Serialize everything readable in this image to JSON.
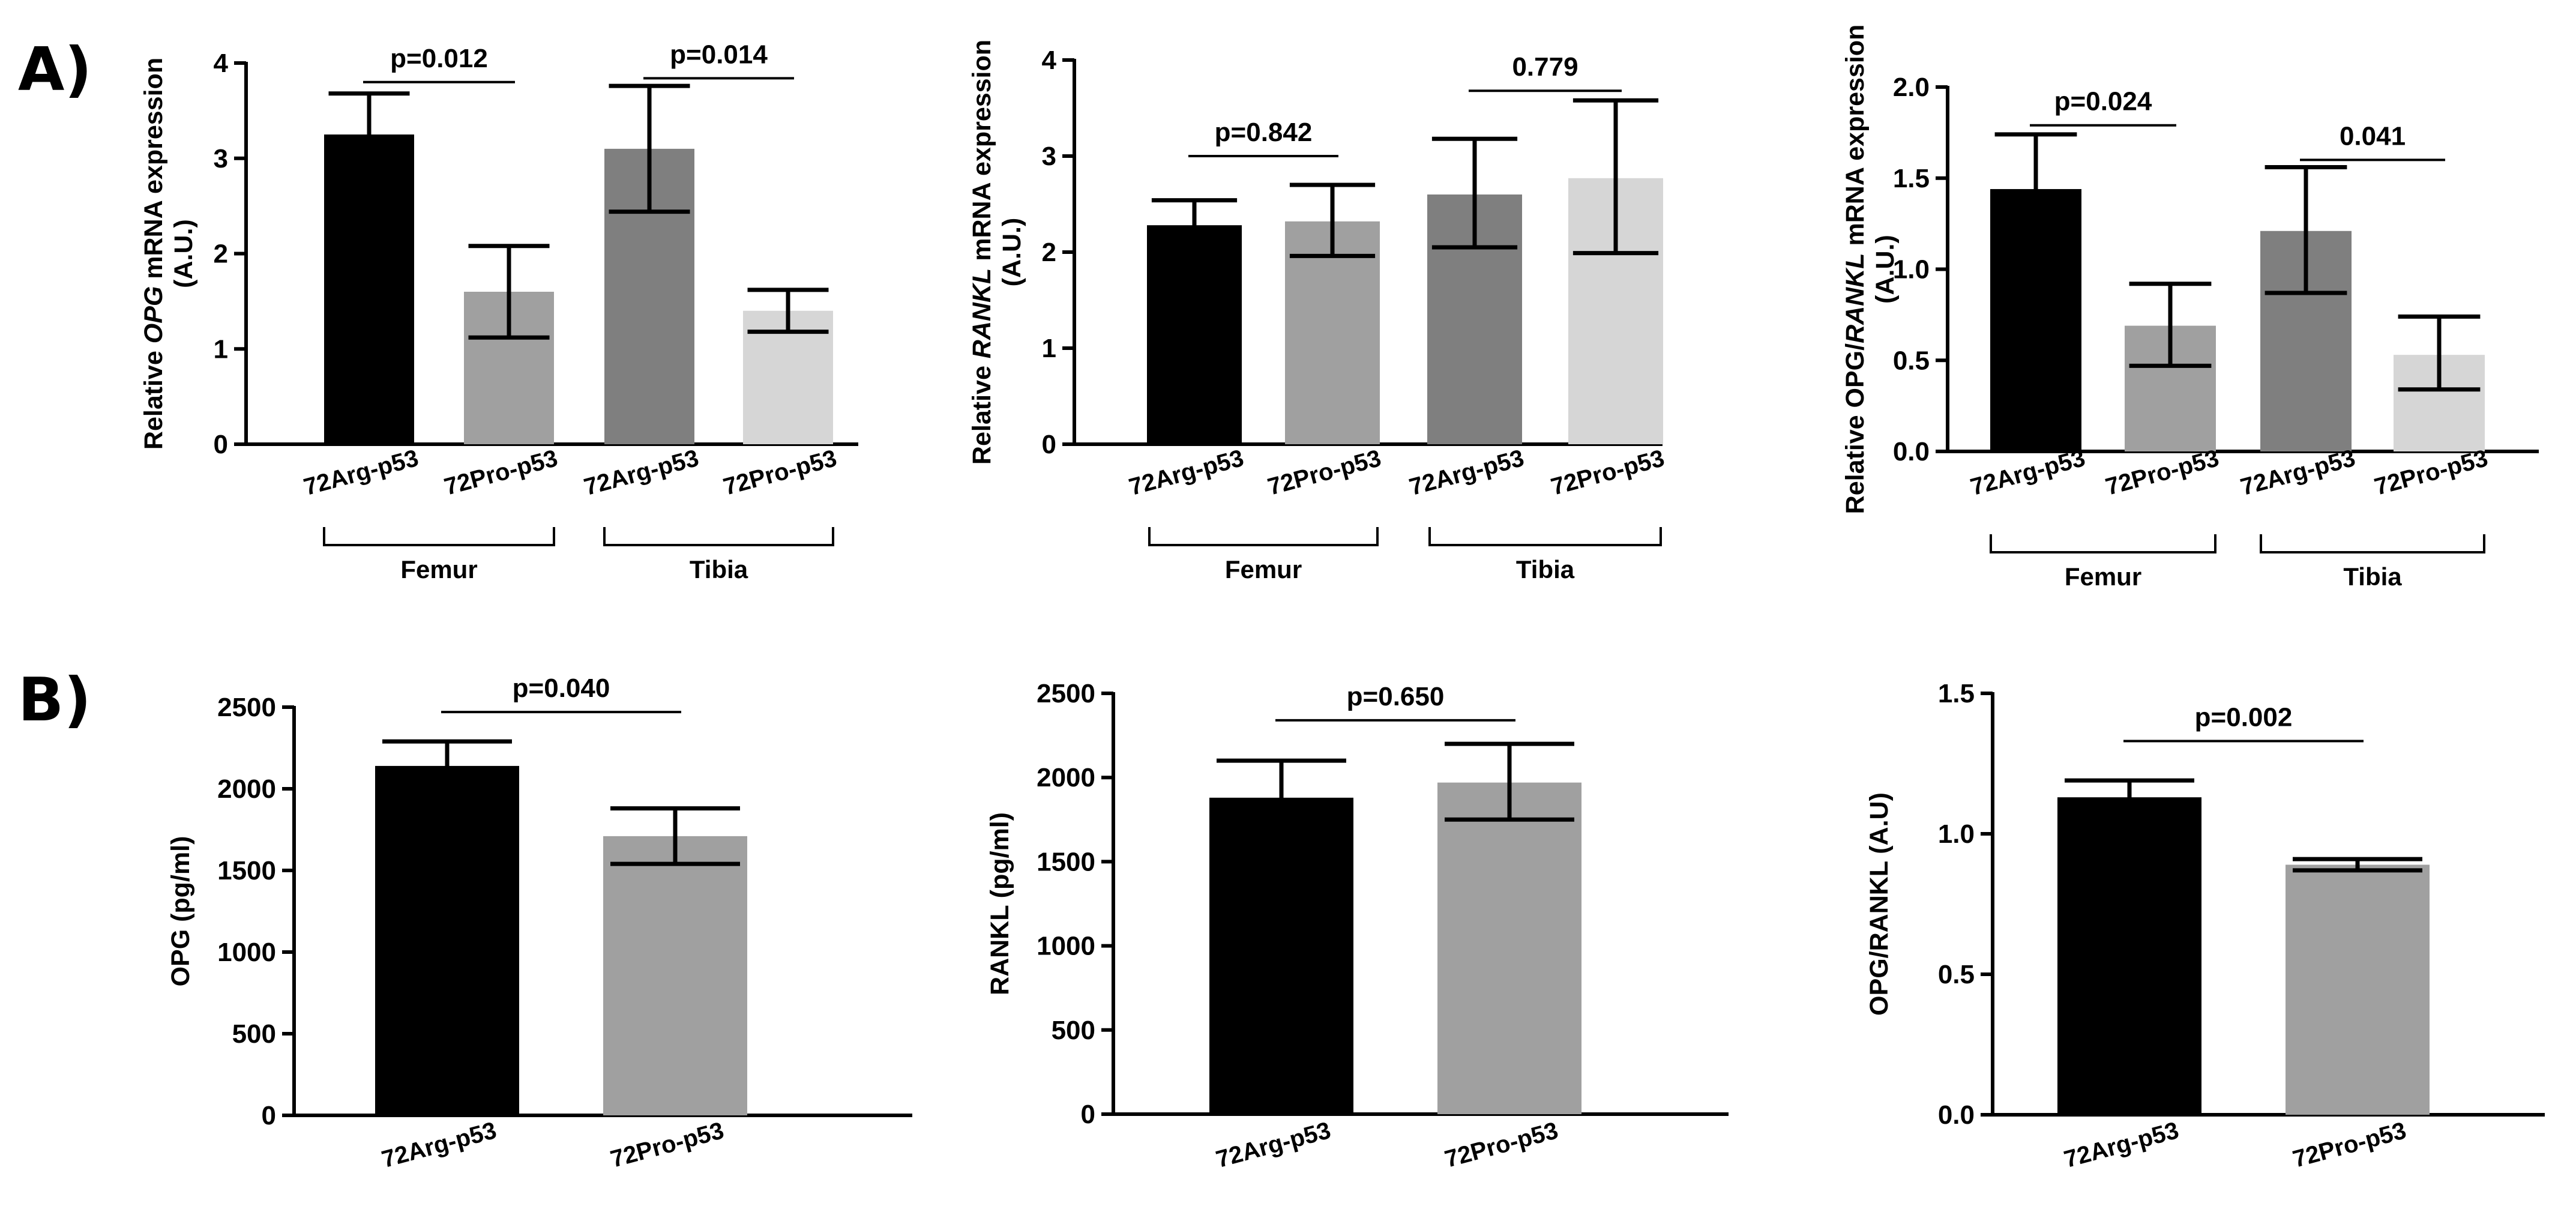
{
  "panel_labels": {
    "a": "A)",
    "b": "B)"
  },
  "colors": {
    "arg": "#000000",
    "pro": "#a0a0a0",
    "arg_tibia": "#7f7f7f",
    "pro_tibia": "#d6d6d6"
  },
  "chart_data": [
    {
      "id": "a1",
      "type": "bar",
      "panel": "A",
      "ylabel_parts": [
        {
          "text": "Relative ",
          "italic": false
        },
        {
          "text": "OPG",
          "italic": true
        },
        {
          "text": " mRNA expression",
          "italic": false
        }
      ],
      "ylabel_line2": "(A.U.)",
      "ylim": [
        0,
        4
      ],
      "yticks": [
        0,
        1,
        2,
        3,
        4
      ],
      "categories": [
        "72Arg-p53",
        "72Pro-p53",
        "72Arg-p53",
        "72Pro-p53"
      ],
      "values": [
        3.25,
        1.6,
        3.1,
        1.4
      ],
      "err_low": [
        2.8,
        1.12,
        2.44,
        1.18
      ],
      "err_high": [
        3.68,
        2.08,
        3.76,
        1.62
      ],
      "colors": [
        "#000000",
        "#a0a0a0",
        "#7f7f7f",
        "#d6d6d6"
      ],
      "groups": [
        {
          "label": "Femur",
          "from": 0,
          "to": 1
        },
        {
          "label": "Tibia",
          "from": 2,
          "to": 3
        }
      ],
      "comparisons": [
        {
          "from": 0,
          "to": 1,
          "label": "p=0.012",
          "y": 3.8
        },
        {
          "from": 2,
          "to": 3,
          "label": "p=0.014",
          "y": 3.84
        }
      ]
    },
    {
      "id": "a2",
      "type": "bar",
      "panel": "A",
      "ylabel_parts": [
        {
          "text": "Relative ",
          "italic": false
        },
        {
          "text": "RANKL",
          "italic": true
        },
        {
          "text": " mRNA expression",
          "italic": false
        }
      ],
      "ylabel_line2": "(A.U.)",
      "ylim": [
        0,
        4
      ],
      "yticks": [
        0,
        1,
        2,
        3,
        4
      ],
      "categories": [
        "72Arg-p53",
        "72Pro-p53",
        "72Arg-p53",
        "72Pro-p53"
      ],
      "values": [
        2.28,
        2.32,
        2.6,
        2.77
      ],
      "err_low": [
        2.02,
        1.96,
        2.05,
        1.99
      ],
      "err_high": [
        2.54,
        2.7,
        3.18,
        3.58
      ],
      "colors": [
        "#000000",
        "#a0a0a0",
        "#7f7f7f",
        "#d6d6d6"
      ],
      "groups": [
        {
          "label": "Femur",
          "from": 0,
          "to": 1
        },
        {
          "label": "Tibia",
          "from": 2,
          "to": 3
        }
      ],
      "comparisons": [
        {
          "from": 0,
          "to": 1,
          "label": "p=0.842",
          "y": 3.0
        },
        {
          "from": 2,
          "to": 3,
          "label": "0.779",
          "y": 3.68
        }
      ]
    },
    {
      "id": "a3",
      "type": "bar",
      "panel": "A",
      "ylabel_parts": [
        {
          "text": "Relative OPG/",
          "italic": false
        },
        {
          "text": "RANKL",
          "italic": true
        },
        {
          "text": " mRNA expression",
          "italic": false
        }
      ],
      "ylabel_line2": "(A.U.)",
      "ylim": [
        0,
        2.0
      ],
      "yticks": [
        0.0,
        0.5,
        1.0,
        1.5,
        2.0
      ],
      "ytick_labels": [
        "0.0",
        "0.5",
        "1.0",
        "1.5",
        "2.0"
      ],
      "categories": [
        "72Arg-p53",
        "72Pro-p53",
        "72Arg-p53",
        "72Pro-p53"
      ],
      "values": [
        1.44,
        0.69,
        1.21,
        0.53
      ],
      "err_low": [
        1.2,
        0.47,
        0.87,
        0.34
      ],
      "err_high": [
        1.74,
        0.92,
        1.56,
        0.74
      ],
      "colors": [
        "#000000",
        "#a0a0a0",
        "#7f7f7f",
        "#d6d6d6"
      ],
      "groups": [
        {
          "label": "Femur",
          "from": 0,
          "to": 1
        },
        {
          "label": "Tibia",
          "from": 2,
          "to": 3
        }
      ],
      "comparisons": [
        {
          "from": 0,
          "to": 1,
          "label": "p=0.024",
          "y": 1.79
        },
        {
          "from": 2,
          "to": 3,
          "label": "0.041",
          "y": 1.6
        }
      ]
    },
    {
      "id": "b1",
      "type": "bar",
      "panel": "B",
      "ylabel_parts": [
        {
          "text": "OPG (pg/ml)",
          "italic": false
        }
      ],
      "ylim": [
        0,
        2500
      ],
      "yticks": [
        0,
        500,
        1000,
        1500,
        2000,
        2500
      ],
      "categories": [
        "72Arg-p53",
        "72Pro-p53"
      ],
      "values": [
        2140,
        1710
      ],
      "err_low": [
        1990,
        1540
      ],
      "err_high": [
        2290,
        1880
      ],
      "colors": [
        "#000000",
        "#a0a0a0"
      ],
      "comparisons": [
        {
          "from": 0,
          "to": 1,
          "label": "p=0.040",
          "y": 2470
        }
      ]
    },
    {
      "id": "b2",
      "type": "bar",
      "panel": "B",
      "ylabel_parts": [
        {
          "text": "RANKL (pg/ml)",
          "italic": false
        }
      ],
      "ylim": [
        0,
        2500
      ],
      "yticks": [
        0,
        500,
        1000,
        1500,
        2000,
        2500
      ],
      "categories": [
        "72Arg-p53",
        "72Pro-p53"
      ],
      "values": [
        1880,
        1970
      ],
      "err_low": [
        1670,
        1750
      ],
      "err_high": [
        2100,
        2200
      ],
      "colors": [
        "#000000",
        "#a0a0a0"
      ],
      "comparisons": [
        {
          "from": 0,
          "to": 1,
          "label": "p=0.650",
          "y": 2340
        }
      ]
    },
    {
      "id": "b3",
      "type": "bar",
      "panel": "B",
      "ylabel_parts": [
        {
          "text": "OPG/RANKL (A.U)",
          "italic": false
        }
      ],
      "ylim": [
        0,
        1.5
      ],
      "yticks": [
        0.0,
        0.5,
        1.0,
        1.5
      ],
      "ytick_labels": [
        "0.0",
        "0.5",
        "1.0",
        "1.5"
      ],
      "categories": [
        "72Arg-p53",
        "72Pro-p53"
      ],
      "values": [
        1.13,
        0.89
      ],
      "err_low": [
        1.07,
        0.87
      ],
      "err_high": [
        1.19,
        0.91
      ],
      "colors": [
        "#000000",
        "#a0a0a0"
      ],
      "comparisons": [
        {
          "from": 0,
          "to": 1,
          "label": "p=0.002",
          "y": 1.33
        }
      ]
    }
  ]
}
